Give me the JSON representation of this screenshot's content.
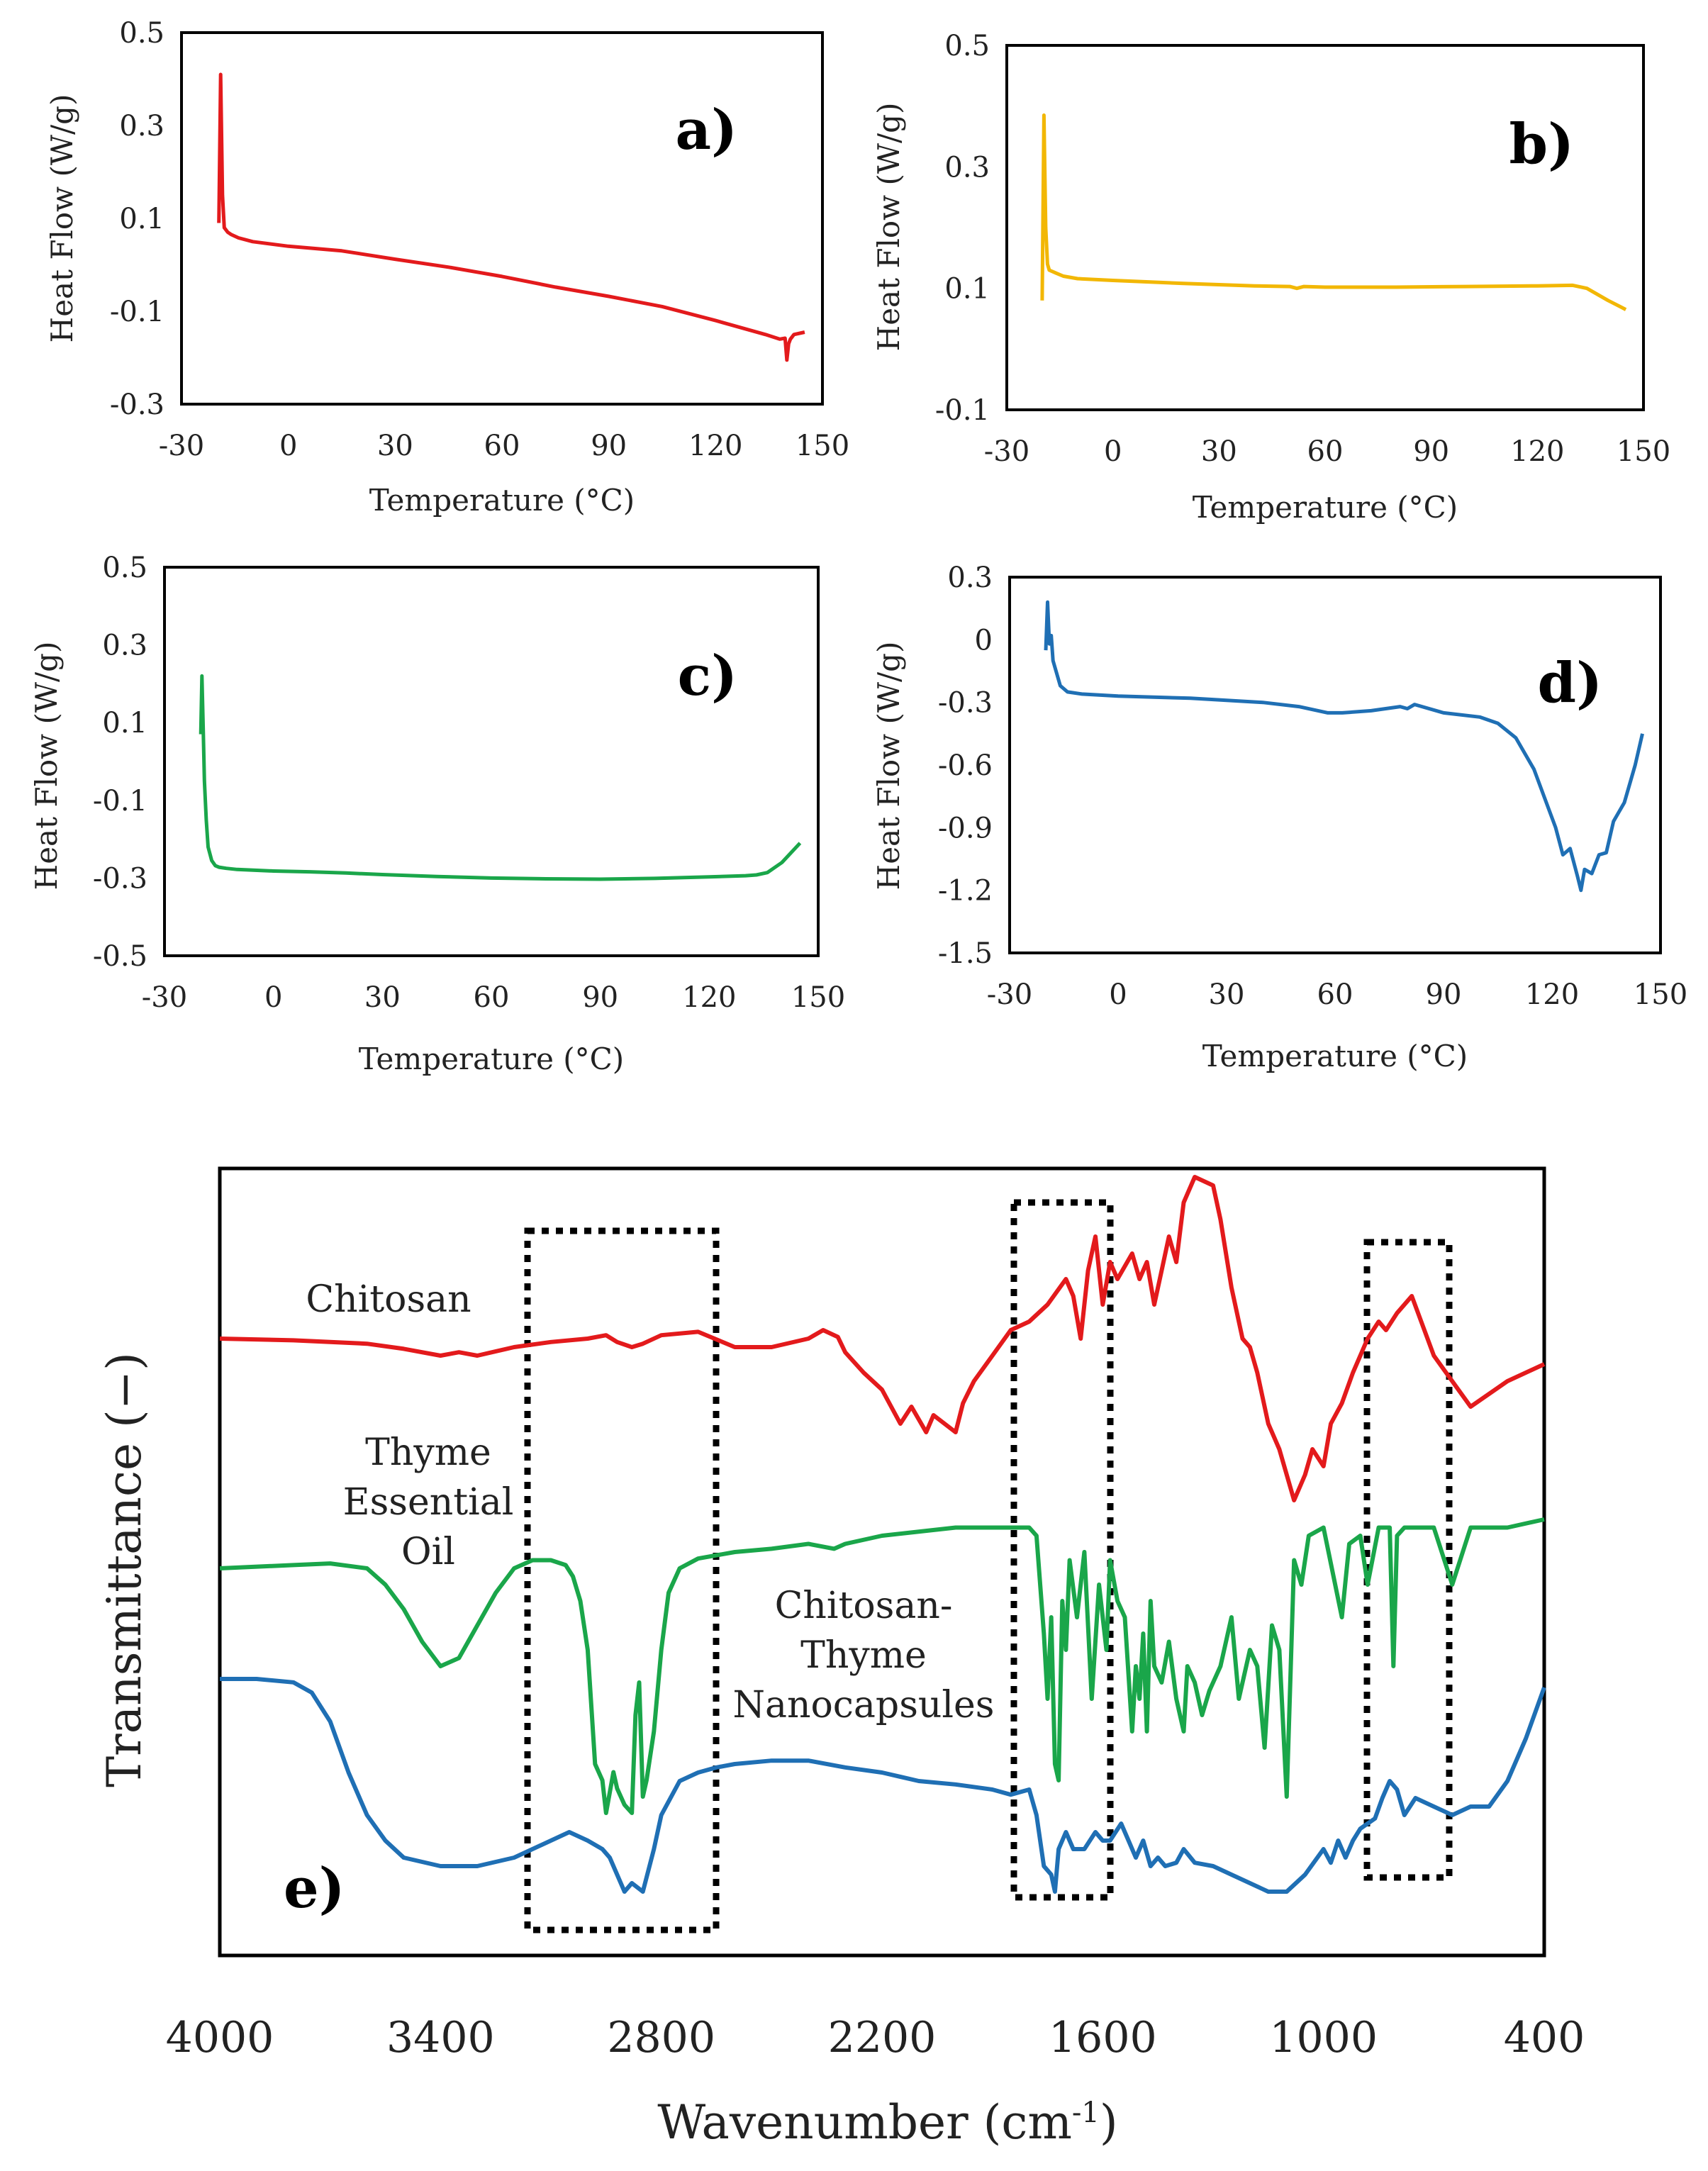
{
  "chart_data": [
    {
      "type": "line",
      "panel": "a)",
      "color": "#e31a1c",
      "xlabel": "Temperature (°C)",
      "ylabel": "Heat Flow (W/g)",
      "xlim": [
        -30,
        150
      ],
      "ylim": [
        -0.3,
        0.5
      ],
      "xticks": [
        -30,
        0,
        30,
        60,
        90,
        120,
        150
      ],
      "yticks": [
        0.5,
        0.3,
        0.1,
        -0.1,
        -0.3
      ],
      "ytick_labels": [
        "0.5",
        "0.3",
        "0.1",
        "-0.1",
        "-0.3"
      ],
      "x": [
        -19.5,
        -19,
        -18.5,
        -18,
        -17,
        -16,
        -14,
        -10,
        0,
        15,
        30,
        45,
        60,
        75,
        90,
        105,
        120,
        134,
        138,
        139.5,
        140,
        140.5,
        141,
        142,
        145
      ],
      "y": [
        0.09,
        0.41,
        0.15,
        0.08,
        0.07,
        0.065,
        0.058,
        0.05,
        0.04,
        0.03,
        0.012,
        -0.005,
        -0.025,
        -0.048,
        -0.068,
        -0.09,
        -0.12,
        -0.15,
        -0.16,
        -0.158,
        -0.205,
        -0.17,
        -0.16,
        -0.15,
        -0.145
      ]
    },
    {
      "type": "line",
      "panel": "b)",
      "color": "#f2b705",
      "xlabel": "Temperature (°C)",
      "ylabel": "Heat Flow (W/g)",
      "xlim": [
        -30,
        150
      ],
      "ylim": [
        -0.1,
        0.5
      ],
      "xticks": [
        -30,
        0,
        30,
        60,
        90,
        120,
        150
      ],
      "yticks": [
        0.5,
        0.3,
        0.1,
        -0.1
      ],
      "ytick_labels": [
        "0.5",
        "0.3",
        "0.1",
        "-0.1"
      ],
      "x": [
        -20,
        -19.5,
        -19,
        -18.5,
        -18,
        -16,
        -14,
        -10,
        0,
        20,
        40,
        50,
        52,
        54,
        60,
        80,
        100,
        120,
        130,
        134,
        140,
        145
      ],
      "y": [
        0.08,
        0.385,
        0.2,
        0.14,
        0.13,
        0.125,
        0.12,
        0.116,
        0.113,
        0.108,
        0.104,
        0.103,
        0.1,
        0.103,
        0.102,
        0.102,
        0.103,
        0.104,
        0.105,
        0.1,
        0.08,
        0.065
      ]
    },
    {
      "type": "line",
      "panel": "c)",
      "color": "#1aa64a",
      "xlabel": "Temperature (°C)",
      "ylabel": "Heat Flow (W/g)",
      "xlim": [
        -30,
        150
      ],
      "ylim": [
        -0.5,
        0.5
      ],
      "xticks": [
        -30,
        0,
        30,
        60,
        90,
        120,
        150
      ],
      "yticks": [
        0.5,
        0.3,
        0.1,
        -0.1,
        -0.3,
        -0.5
      ],
      "ytick_labels": [
        "0.5",
        "0.3",
        "0.1",
        "-0.1",
        "-0.3",
        "-0.5"
      ],
      "x": [
        -20,
        -19.7,
        -19.3,
        -19,
        -18.5,
        -18,
        -17,
        -16,
        -15,
        -13,
        -10,
        0,
        10,
        20,
        30,
        45,
        60,
        75,
        90,
        105,
        120,
        130,
        133,
        136,
        140,
        145
      ],
      "y": [
        0.07,
        0.22,
        0.07,
        -0.05,
        -0.15,
        -0.22,
        -0.255,
        -0.268,
        -0.272,
        -0.275,
        -0.278,
        -0.282,
        -0.284,
        -0.287,
        -0.291,
        -0.296,
        -0.3,
        -0.302,
        -0.303,
        -0.301,
        -0.297,
        -0.294,
        -0.292,
        -0.286,
        -0.26,
        -0.21
      ]
    },
    {
      "type": "line",
      "panel": "d)",
      "color": "#1f6fb4",
      "xlabel": "Temperature (°C)",
      "ylabel": "Heat Flow (W/g)",
      "xlim": [
        -30,
        150
      ],
      "ylim": [
        -1.5,
        0.3
      ],
      "xticks": [
        -30,
        0,
        30,
        60,
        90,
        120,
        150
      ],
      "yticks": [
        0.3,
        0,
        -0.3,
        -0.6,
        -0.9,
        -1.2,
        -1.5
      ],
      "ytick_labels": [
        "0.3",
        "0",
        "-0.3",
        "-0.6",
        "-0.9",
        "-1.2",
        "-1.5"
      ],
      "x": [
        -20,
        -19.5,
        -19,
        -18.5,
        -18,
        -17,
        -16,
        -14,
        -10,
        0,
        20,
        40,
        50,
        58,
        62,
        70,
        78,
        80,
        82,
        90,
        100,
        105,
        110,
        115,
        118,
        121,
        123,
        125,
        127,
        128,
        129,
        131,
        133,
        135,
        137,
        140,
        143,
        145
      ],
      "y": [
        -0.05,
        0.18,
        -0.02,
        0.02,
        -0.1,
        -0.16,
        -0.22,
        -0.25,
        -0.26,
        -0.27,
        -0.28,
        -0.3,
        -0.32,
        -0.35,
        -0.35,
        -0.34,
        -0.32,
        -0.33,
        -0.31,
        -0.35,
        -0.37,
        -0.4,
        -0.47,
        -0.62,
        -0.76,
        -0.9,
        -1.03,
        -1.0,
        -1.13,
        -1.2,
        -1.1,
        -1.12,
        -1.03,
        -1.02,
        -0.87,
        -0.78,
        -0.6,
        -0.45
      ]
    },
    {
      "type": "line",
      "panel": "e)",
      "xlabel": "Wavenumber (cm",
      "xlabel_sup": "-1",
      "xlabel_end": ")",
      "ylabel": "Transmittance (−)",
      "xlim": [
        4000,
        400
      ],
      "xticks": [
        4000,
        3400,
        2800,
        2200,
        1600,
        1000,
        400
      ],
      "series": [
        {
          "name": "Chitosan",
          "color": "#e31a1c",
          "label_lines": [
            "Chitosan"
          ],
          "x": [
            4000,
            3800,
            3600,
            3500,
            3400,
            3350,
            3300,
            3200,
            3100,
            3000,
            2950,
            2920,
            2880,
            2850,
            2800,
            2700,
            2600,
            2500,
            2400,
            2360,
            2320,
            2300,
            2250,
            2200,
            2150,
            2120,
            2080,
            2060,
            2000,
            1980,
            1950,
            1900,
            1850,
            1800,
            1750,
            1700,
            1680,
            1660,
            1640,
            1620,
            1600,
            1580,
            1560,
            1520,
            1500,
            1480,
            1460,
            1440,
            1420,
            1400,
            1380,
            1350,
            1300,
            1280,
            1250,
            1220,
            1200,
            1180,
            1150,
            1120,
            1100,
            1080,
            1050,
            1030,
            1000,
            980,
            950,
            920,
            900,
            880,
            850,
            830,
            800,
            760,
            700,
            600,
            500,
            400
          ],
          "y": [
            0.0,
            -0.01,
            -0.03,
            -0.06,
            -0.1,
            -0.08,
            -0.1,
            -0.05,
            -0.02,
            0.0,
            0.02,
            -0.02,
            -0.05,
            -0.03,
            0.02,
            0.04,
            -0.05,
            -0.05,
            0.0,
            0.05,
            0.01,
            -0.08,
            -0.2,
            -0.3,
            -0.5,
            -0.4,
            -0.55,
            -0.45,
            -0.55,
            -0.38,
            -0.25,
            -0.1,
            0.05,
            0.1,
            0.2,
            0.35,
            0.25,
            0.0,
            0.4,
            0.6,
            0.2,
            0.45,
            0.35,
            0.5,
            0.35,
            0.45,
            0.2,
            0.4,
            0.6,
            0.45,
            0.8,
            0.95,
            0.9,
            0.7,
            0.3,
            0.0,
            -0.05,
            -0.2,
            -0.5,
            -0.65,
            -0.8,
            -0.95,
            -0.8,
            -0.65,
            -0.75,
            -0.5,
            -0.38,
            -0.2,
            -0.1,
            0.0,
            0.1,
            0.05,
            0.15,
            0.25,
            -0.1,
            -0.4,
            -0.25,
            -0.15
          ]
        },
        {
          "name": "Thyme Essential Oil",
          "color": "#1aa64a",
          "label_lines": [
            "Thyme",
            "Essential",
            "Oil"
          ],
          "x": [
            4000,
            3800,
            3700,
            3600,
            3550,
            3500,
            3450,
            3400,
            3350,
            3300,
            3250,
            3200,
            3150,
            3100,
            3060,
            3040,
            3020,
            3000,
            2980,
            2960,
            2950,
            2930,
            2920,
            2900,
            2880,
            2870,
            2860,
            2850,
            2840,
            2820,
            2800,
            2780,
            2750,
            2700,
            2600,
            2500,
            2400,
            2330,
            2300,
            2200,
            2000,
            1800,
            1780,
            1760,
            1750,
            1740,
            1730,
            1720,
            1710,
            1700,
            1690,
            1670,
            1650,
            1630,
            1610,
            1590,
            1580,
            1560,
            1540,
            1520,
            1510,
            1500,
            1490,
            1480,
            1470,
            1460,
            1440,
            1420,
            1400,
            1380,
            1370,
            1350,
            1330,
            1310,
            1280,
            1250,
            1230,
            1200,
            1180,
            1160,
            1140,
            1120,
            1100,
            1080,
            1060,
            1040,
            1000,
            950,
            930,
            900,
            880,
            850,
            820,
            810,
            800,
            780,
            720,
            700,
            650,
            600,
            500,
            400
          ],
          "y": [
            0.0,
            0.02,
            0.03,
            0.0,
            -0.1,
            -0.25,
            -0.45,
            -0.6,
            -0.55,
            -0.35,
            -0.15,
            0.0,
            0.05,
            0.05,
            0.02,
            -0.05,
            -0.2,
            -0.5,
            -1.2,
            -1.3,
            -1.5,
            -1.25,
            -1.35,
            -1.45,
            -1.5,
            -0.9,
            -0.7,
            -1.4,
            -1.3,
            -1.0,
            -0.5,
            -0.15,
            0.0,
            0.06,
            0.1,
            0.12,
            0.15,
            0.12,
            0.15,
            0.2,
            0.25,
            0.25,
            0.2,
            -0.4,
            -0.8,
            -0.3,
            -1.2,
            -1.3,
            -0.2,
            -0.5,
            0.05,
            -0.3,
            0.1,
            -0.8,
            -0.1,
            -0.5,
            0.05,
            -0.2,
            -0.3,
            -1.0,
            -0.6,
            -0.8,
            -0.4,
            -1.0,
            -0.2,
            -0.6,
            -0.7,
            -0.45,
            -0.8,
            -1.0,
            -0.6,
            -0.7,
            -0.9,
            -0.75,
            -0.6,
            -0.3,
            -0.8,
            -0.5,
            -0.6,
            -1.1,
            -0.35,
            -0.5,
            -1.4,
            0.05,
            -0.1,
            0.2,
            0.25,
            -0.3,
            0.15,
            0.2,
            -0.1,
            0.25,
            0.25,
            -0.6,
            0.2,
            0.25,
            0.25,
            0.25,
            -0.1,
            0.25,
            0.25,
            0.3
          ]
        },
        {
          "name": "Chitosan-Thyme Nanocapsules",
          "color": "#1f6fb4",
          "label_lines": [
            "Chitosan-",
            "Thyme",
            "Nanocapsules"
          ],
          "x": [
            4000,
            3900,
            3800,
            3750,
            3700,
            3650,
            3600,
            3550,
            3500,
            3400,
            3300,
            3200,
            3100,
            3050,
            3000,
            2960,
            2940,
            2920,
            2900,
            2880,
            2850,
            2820,
            2800,
            2750,
            2700,
            2650,
            2600,
            2500,
            2400,
            2300,
            2200,
            2100,
            2000,
            1900,
            1850,
            1800,
            1780,
            1760,
            1740,
            1730,
            1720,
            1700,
            1680,
            1650,
            1620,
            1600,
            1580,
            1550,
            1530,
            1510,
            1490,
            1470,
            1450,
            1430,
            1400,
            1380,
            1350,
            1300,
            1250,
            1200,
            1150,
            1100,
            1050,
            1000,
            980,
            960,
            940,
            920,
            900,
            880,
            860,
            840,
            820,
            800,
            780,
            750,
            700,
            650,
            600,
            550,
            500,
            450,
            400
          ],
          "y": [
            0.0,
            0.0,
            -0.02,
            -0.08,
            -0.25,
            -0.55,
            -0.8,
            -0.95,
            -1.05,
            -1.1,
            -1.1,
            -1.05,
            -0.95,
            -0.9,
            -0.95,
            -1.0,
            -1.05,
            -1.15,
            -1.25,
            -1.2,
            -1.25,
            -1.0,
            -0.8,
            -0.6,
            -0.55,
            -0.52,
            -0.5,
            -0.48,
            -0.48,
            -0.52,
            -0.55,
            -0.6,
            -0.62,
            -0.65,
            -0.68,
            -0.65,
            -0.8,
            -1.1,
            -1.15,
            -1.25,
            -1.0,
            -0.9,
            -1.0,
            -1.0,
            -0.9,
            -0.95,
            -0.95,
            -0.85,
            -0.95,
            -1.05,
            -0.95,
            -1.1,
            -1.05,
            -1.1,
            -1.08,
            -1.0,
            -1.08,
            -1.1,
            -1.15,
            -1.2,
            -1.25,
            -1.25,
            -1.15,
            -1.0,
            -1.08,
            -0.95,
            -1.05,
            -0.95,
            -0.88,
            -0.85,
            -0.82,
            -0.7,
            -0.6,
            -0.65,
            -0.8,
            -0.7,
            -0.75,
            -0.8,
            -0.75,
            -0.75,
            -0.6,
            -0.35,
            -0.05
          ]
        }
      ],
      "annotation": "dotted boxes mark regions around 3080–2700, 1800–1580 and 900–700 cm-1"
    }
  ]
}
